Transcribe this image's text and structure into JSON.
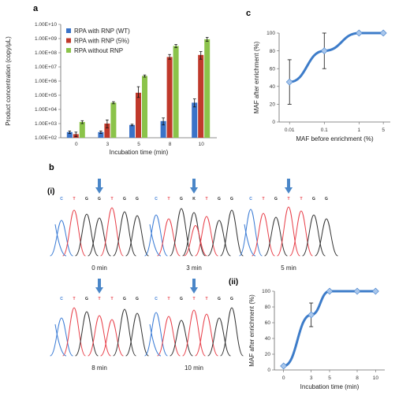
{
  "panel_labels": {
    "a": "a",
    "b": "b",
    "c": "c",
    "bi": "(i)",
    "bii": "(ii)"
  },
  "colors": {
    "wt": "#3a73c8",
    "rnp5": "#c0392b",
    "norpn": "#8bc34a",
    "line": "#3d7cc9",
    "marker": "#a9c7ec",
    "arrow": "#4a86c8",
    "trace_g": "#333333",
    "trace_t": "#e8404a",
    "trace_c": "#3a7bd5",
    "trace_a": "#3aa655"
  },
  "chart_data": [
    {
      "id": "a",
      "type": "bar",
      "xlabel": "Incubation time (min)",
      "ylabel": "Product concentration (copy/μL)",
      "yscale": "log",
      "ylim": [
        100,
        10000000000
      ],
      "yticks": [
        "1.00E+02",
        "1.00E+03",
        "1.00E+04",
        "1.00E+05",
        "1.00E+06",
        "1.00E+07",
        "1.00E+08",
        "1.00E+09",
        "1.00E+10"
      ],
      "categories": [
        "0",
        "3",
        "5",
        "8",
        "10"
      ],
      "legend_position": "top-left",
      "series": [
        {
          "name": "RPA with RNP (WT)",
          "values": [
            250,
            250,
            800,
            1500,
            30000
          ],
          "err_lo": [
            200,
            200,
            700,
            800,
            15000
          ],
          "err_hi": [
            300,
            300,
            900,
            2500,
            55000
          ]
        },
        {
          "name": "RPA with RNP (5%)",
          "values": [
            180,
            1000,
            150000,
            50000000,
            70000000
          ],
          "err_lo": [
            120,
            500,
            70000,
            35000000,
            35000000
          ],
          "err_hi": [
            250,
            1800,
            400000,
            75000000,
            120000000
          ]
        },
        {
          "name": "RPA without RNP",
          "values": [
            1300,
            30000,
            2300000,
            300000000,
            900000000
          ],
          "err_lo": [
            1000,
            25000,
            1900000,
            230000000,
            650000000
          ],
          "err_hi": [
            1600,
            35000,
            2700000,
            380000000,
            1200000000
          ]
        }
      ]
    },
    {
      "id": "c",
      "type": "line",
      "xlabel": "MAF before enrichment (%)",
      "ylabel": "MAF after enrichment (%)",
      "x": [
        "0.01",
        "0.1",
        "1",
        "5"
      ],
      "xscale": "log",
      "ylim": [
        0,
        100
      ],
      "yticks": [
        "0",
        "20",
        "40",
        "60",
        "80",
        "100"
      ],
      "values": [
        45,
        80,
        100,
        100
      ],
      "err": [
        25,
        20,
        0,
        0
      ]
    },
    {
      "id": "bii",
      "type": "line",
      "xlabel": "Incubation time (min)",
      "ylabel": "MAF after enrichment (%)",
      "x": [
        "0",
        "3",
        "5",
        "8",
        "10"
      ],
      "ylim": [
        0,
        100
      ],
      "yticks": [
        "0",
        "20",
        "40",
        "60",
        "80",
        "100"
      ],
      "values": [
        5,
        70,
        100,
        100,
        100
      ],
      "err": [
        0,
        15,
        0,
        0,
        0
      ]
    }
  ],
  "chromatograms": [
    {
      "time": "0 min",
      "bases": [
        "C",
        "T",
        "G",
        "G",
        "T",
        "G",
        "G"
      ]
    },
    {
      "time": "3 min",
      "bases": [
        "C",
        "T",
        "G",
        "K",
        "T",
        "G",
        "G"
      ]
    },
    {
      "time": "5 min",
      "bases": [
        "C",
        "T",
        "G",
        "T",
        "T",
        "G",
        "G"
      ]
    },
    {
      "time": "8 min",
      "bases": [
        "C",
        "T",
        "G",
        "T",
        "T",
        "G",
        "G"
      ]
    },
    {
      "time": "10 min",
      "bases": [
        "C",
        "T",
        "G",
        "T",
        "T",
        "G",
        "G"
      ]
    }
  ]
}
